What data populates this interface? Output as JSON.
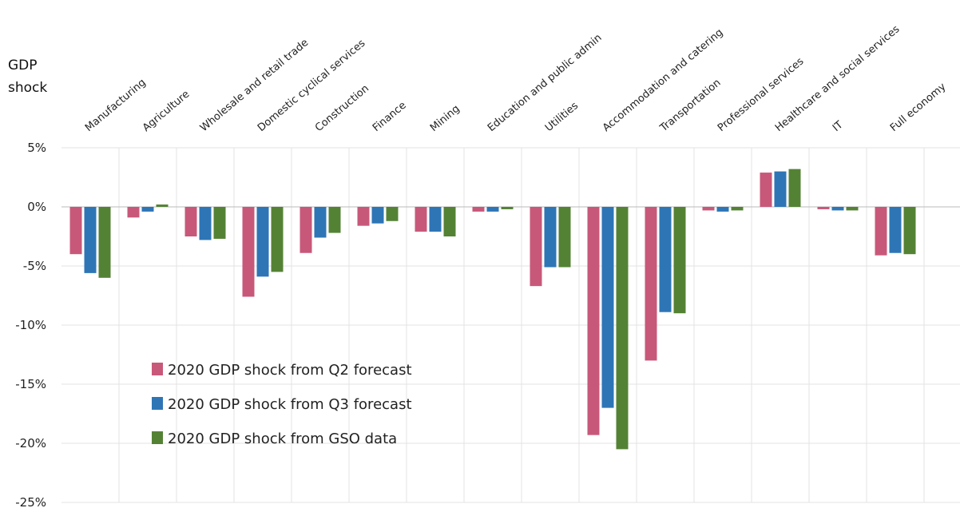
{
  "chart_data": {
    "type": "bar",
    "y_label": "GDP shock",
    "categories": [
      "Manufacturing",
      "Agriculture",
      "Wholesale and retail trade",
      "Domestic cyclical services",
      "Construction",
      "Finance",
      "Mining",
      "Education and public admin",
      "Utilities",
      "Accommodation and catering",
      "Transportation",
      "Professional services",
      "Healthcare and social services",
      "IT",
      "Full economy"
    ],
    "series": [
      {
        "name": "2020 GDP shock from Q2 forecast",
        "color": "#c8587a",
        "values": [
          -4.0,
          -0.9,
          -2.5,
          -7.6,
          -3.9,
          -1.6,
          -2.1,
          -0.4,
          -6.7,
          -19.3,
          -13.0,
          -0.3,
          2.9,
          -0.2,
          -4.1
        ]
      },
      {
        "name": "2020 GDP shock from Q3 forecast",
        "color": "#2e75b6",
        "values": [
          -5.6,
          -0.4,
          -2.8,
          -5.9,
          -2.6,
          -1.4,
          -2.1,
          -0.4,
          -5.1,
          -17.0,
          -8.9,
          -0.4,
          3.0,
          -0.3,
          -3.9
        ]
      },
      {
        "name": "2020 GDP shock from GSO data",
        "color": "#548235",
        "values": [
          -6.0,
          0.2,
          -2.7,
          -5.5,
          -2.2,
          -1.2,
          -2.5,
          -0.2,
          -5.1,
          -20.5,
          -9.0,
          -0.3,
          3.2,
          -0.3,
          -4.0
        ]
      }
    ],
    "ylim": [
      -25,
      5
    ],
    "yticks": [
      {
        "value": 5,
        "label": "5%"
      },
      {
        "value": 0,
        "label": "0%"
      },
      {
        "value": -5,
        "label": "-5%"
      },
      {
        "value": -10,
        "label": "-10%"
      },
      {
        "value": -15,
        "label": "-15%"
      },
      {
        "value": -20,
        "label": "-20%"
      },
      {
        "value": -25,
        "label": "-25%"
      }
    ],
    "grid": true
  }
}
